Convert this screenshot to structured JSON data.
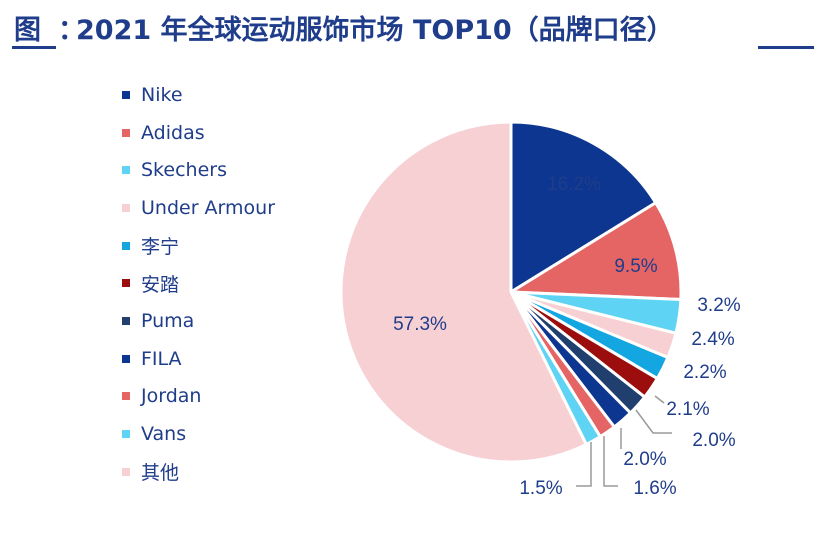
{
  "page": {
    "title_label": "图",
    "title_separator": "：",
    "title": "2021 年全球运动服饰市场 TOP10（品牌口径）"
  },
  "chart_data": {
    "type": "pie",
    "title": "2021 年全球运动服饰市场 TOP10（品牌口径）",
    "legend_position": "left",
    "slices": [
      {
        "name": "Nike",
        "value": 16.2,
        "label": "16.2%",
        "color": "#0d3690"
      },
      {
        "name": "Adidas",
        "value": 9.5,
        "label": "9.5%",
        "color": "#e56565"
      },
      {
        "name": "Skechers",
        "value": 3.2,
        "label": "3.2%",
        "color": "#5fd3f3"
      },
      {
        "name": "Under Armour",
        "value": 2.4,
        "label": "2.4%",
        "color": "#f7d0d3"
      },
      {
        "name": "李宁",
        "value": 2.2,
        "label": "2.2%",
        "color": "#14a6e0"
      },
      {
        "name": "安踏",
        "value": 2.1,
        "label": "2.1%",
        "color": "#9c0d0d"
      },
      {
        "name": "Puma",
        "value": 2.0,
        "label": "2.0%",
        "color": "#213f6e"
      },
      {
        "name": "FILA",
        "value": 2.0,
        "label": "2.0%",
        "color": "#0d3690"
      },
      {
        "name": "Jordan",
        "value": 1.6,
        "label": "1.6%",
        "color": "#e56565"
      },
      {
        "name": "Vans",
        "value": 1.5,
        "label": "1.5%",
        "color": "#5fd3f3"
      },
      {
        "name": "其他",
        "value": 57.3,
        "label": "57.3%",
        "color": "#f7d0d3"
      }
    ]
  }
}
